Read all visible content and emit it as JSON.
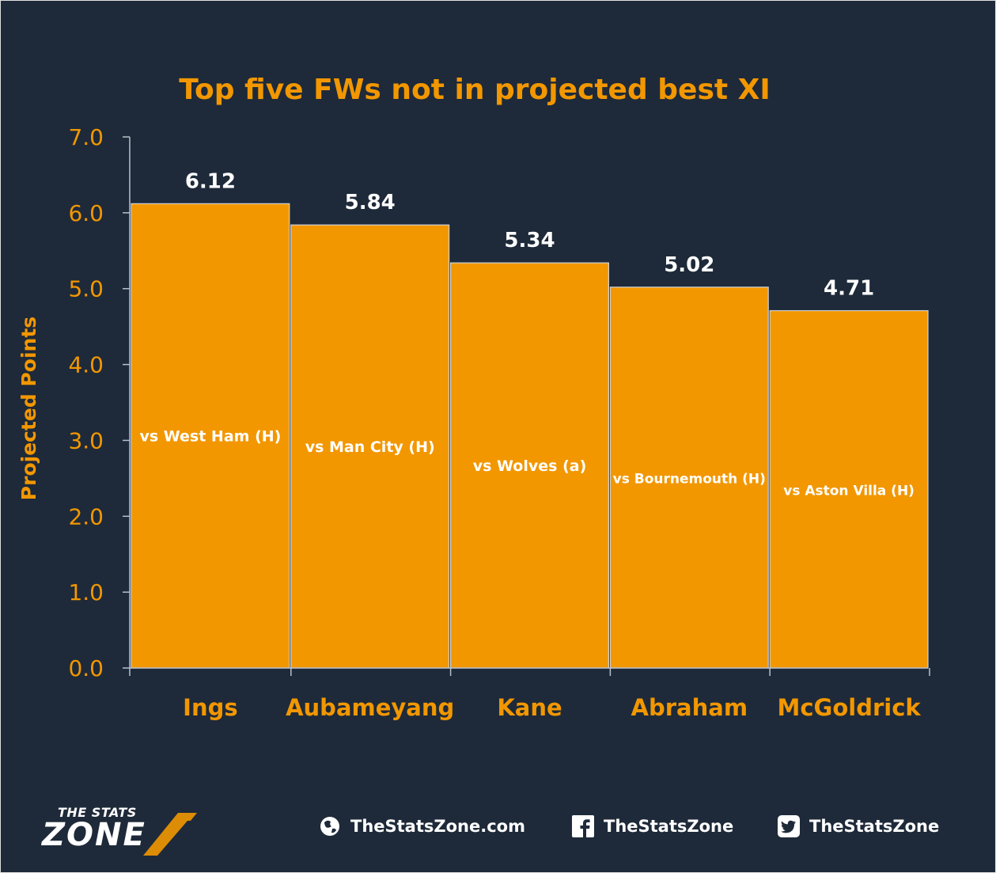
{
  "colors": {
    "background": "#1e2a39",
    "accent": "#f29700",
    "bar_border": "#cfd3d8",
    "value_text": "#ffffff"
  },
  "chart_data": {
    "type": "bar",
    "title": "Top five FWs not in projected best XI",
    "xlabel": "",
    "ylabel": "Projected Points",
    "ylim": [
      0,
      7
    ],
    "ytick_labels": [
      "0.0",
      "1.0",
      "2.0",
      "3.0",
      "4.0",
      "5.0",
      "6.0",
      "7.0"
    ],
    "categories": [
      "Ings",
      "Aubameyang",
      "Kane",
      "Abraham",
      "McGoldrick"
    ],
    "values": [
      6.12,
      5.84,
      5.34,
      5.02,
      4.71
    ],
    "value_labels": [
      "6.12",
      "5.84",
      "5.34",
      "5.02",
      "4.71"
    ],
    "fixtures": [
      "vs West Ham (H)",
      "vs Man City (H)",
      "vs Wolves (a)",
      "vs Bournemouth (H)",
      "vs Aston Villa (H)"
    ],
    "grid": false,
    "legend": "none"
  },
  "footer": {
    "logo_top": "THE STATS",
    "logo_main": "ZONE",
    "website": "TheStatsZone.com",
    "facebook": "TheStatsZone",
    "twitter": "TheStatsZone",
    "icons": [
      "globe-icon",
      "facebook-icon",
      "twitter-icon"
    ]
  }
}
